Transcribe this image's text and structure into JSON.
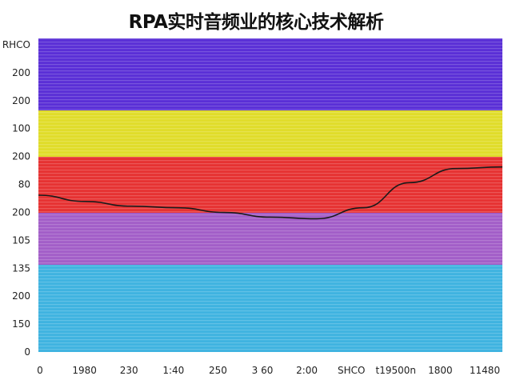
{
  "chart_data": {
    "type": "line",
    "title": "RPA实时音频业的核心技术解析",
    "background_bands": [
      {
        "color": "#5a2fd6"
      },
      {
        "color": "#e0dc2a"
      },
      {
        "color": "#e63232"
      },
      {
        "color": "#a25ec8"
      },
      {
        "color": "#3fb3e0"
      }
    ],
    "y_tick_labels": [
      "RHCO",
      "200",
      "200",
      "100",
      "200",
      "80",
      "200",
      "105",
      "135",
      "200",
      "150",
      "0"
    ],
    "x_tick_labels": [
      "0",
      "1980",
      "230",
      "1:40",
      "250",
      "3 60",
      "2:00",
      "SHCO",
      "t19500n",
      "1800",
      "11480"
    ],
    "series": [
      {
        "color": "#1a1a1a",
        "values": [
          100,
          96,
          93,
          92,
          89,
          86,
          85,
          92,
          108,
          117,
          118
        ]
      }
    ],
    "grid": false,
    "legend": "none"
  }
}
